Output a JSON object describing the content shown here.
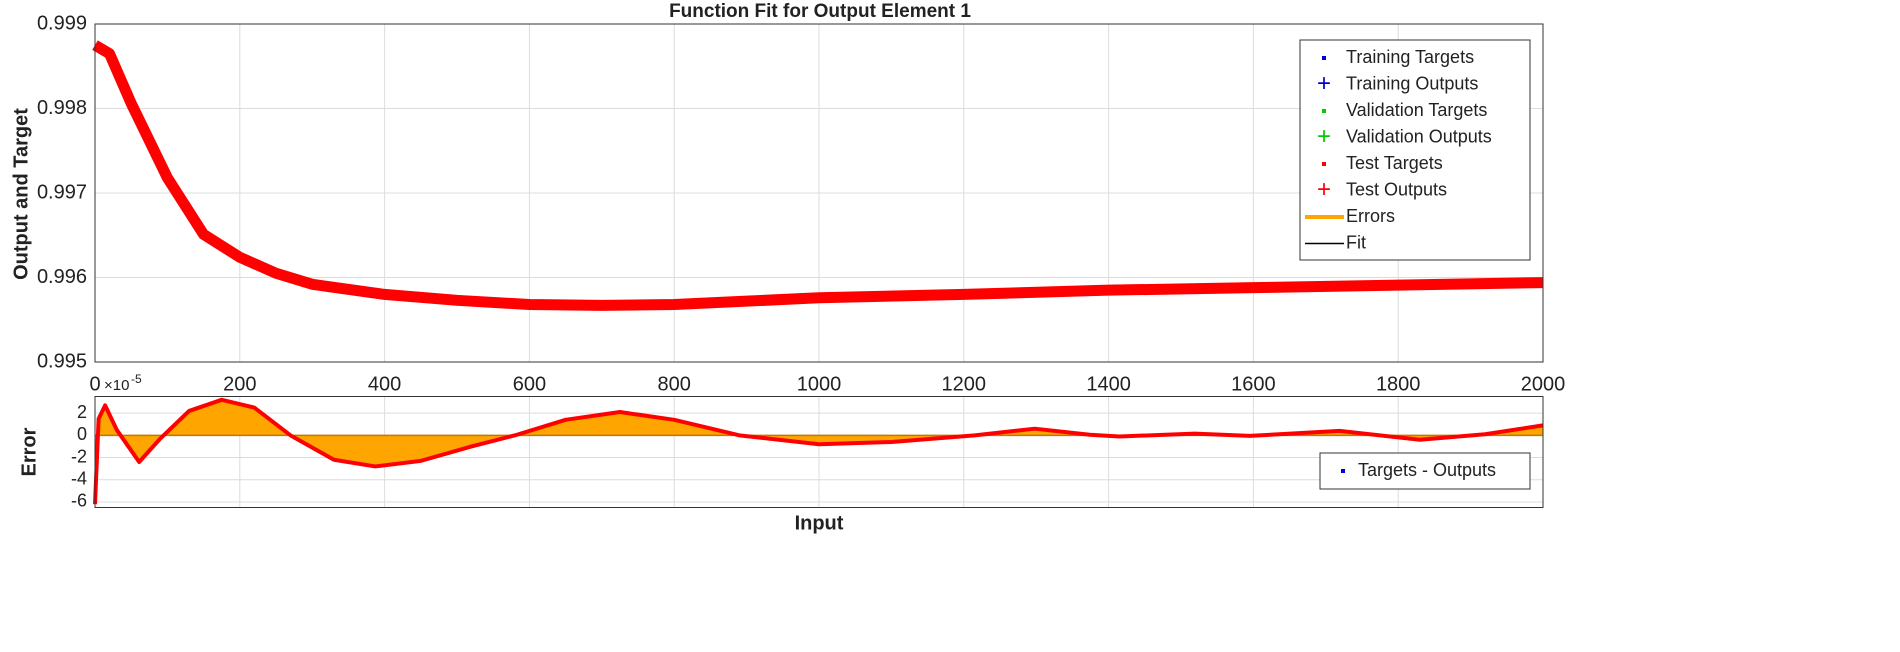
{
  "chart_data": [
    {
      "type": "line",
      "title": "Function Fit for Output Element 1",
      "y_label": "Output and Target",
      "x": [
        0,
        20,
        50,
        100,
        150,
        200,
        250,
        300,
        400,
        500,
        600,
        700,
        800,
        900,
        1000,
        1200,
        1400,
        1600,
        1800,
        2000
      ],
      "series": [
        {
          "color": "#ff0000",
          "values": [
            0.99875,
            0.99865,
            0.99806,
            0.99718,
            0.99651,
            0.99624,
            0.99605,
            0.99592,
            0.9958,
            0.99573,
            0.99568,
            0.99567,
            0.99568,
            0.99572,
            0.99576,
            0.9958,
            0.99585,
            0.99588,
            0.99591,
            0.99594
          ]
        }
      ],
      "xlim": [
        0,
        2000
      ],
      "xticks": [
        0,
        200,
        400,
        600,
        800,
        1000,
        1200,
        1400,
        1600,
        1800,
        2000
      ],
      "ylim": [
        0.995,
        0.999
      ],
      "yticks": [
        0.995,
        0.996,
        0.997,
        0.998,
        0.999
      ],
      "grid": true,
      "legend_position": "upper right",
      "legend": [
        {
          "name": "Training Targets",
          "color": "#0000cc",
          "marker": "dot"
        },
        {
          "name": "Training Outputs",
          "color": "#0000cc",
          "marker": "plus"
        },
        {
          "name": "Validation Targets",
          "color": "#00cc00",
          "marker": "dot"
        },
        {
          "name": "Validation Outputs",
          "color": "#00cc00",
          "marker": "plus"
        },
        {
          "name": "Test Targets",
          "color": "#ff0000",
          "marker": "dot"
        },
        {
          "name": "Test Outputs",
          "color": "#ff0000",
          "marker": "plus"
        },
        {
          "name": "Errors",
          "color": "#ffa500",
          "marker": "line"
        },
        {
          "name": "Fit",
          "color": "#000000",
          "marker": "line"
        }
      ]
    },
    {
      "type": "area",
      "x_label": "Input",
      "y_label": "Error",
      "y_multiplier": {
        "base": "×10",
        "power": "-5"
      },
      "x": [
        0,
        5,
        14,
        30,
        61,
        90,
        130,
        175,
        220,
        270,
        330,
        387,
        450,
        520,
        580,
        650,
        725,
        800,
        890,
        1000,
        1100,
        1215,
        1298,
        1374,
        1415,
        1519,
        1595,
        1719,
        1830,
        1920,
        2000
      ],
      "series": [
        {
          "name": "Targets - Outputs",
          "color": "#ff0000",
          "fill": "#ffa500",
          "legend_color": "#0000cc",
          "values": [
            -6.2,
            1.5,
            2.7,
            0.5,
            -2.4,
            -0.3,
            2.2,
            3.2,
            2.5,
            0,
            -2.2,
            -2.8,
            -2.3,
            -1.0,
            0,
            1.4,
            2.1,
            1.4,
            0,
            -0.8,
            -0.6,
            0,
            0.6,
            0.05,
            -0.1,
            0.15,
            -0.05,
            0.4,
            -0.4,
            0.1,
            0.9
          ]
        }
      ],
      "xlim": [
        0,
        2000
      ],
      "ylim": [
        -6.5,
        3.5
      ],
      "yticks": [
        -6,
        -4,
        -2,
        0,
        2
      ],
      "grid": true,
      "legend_position": "lower right"
    }
  ]
}
